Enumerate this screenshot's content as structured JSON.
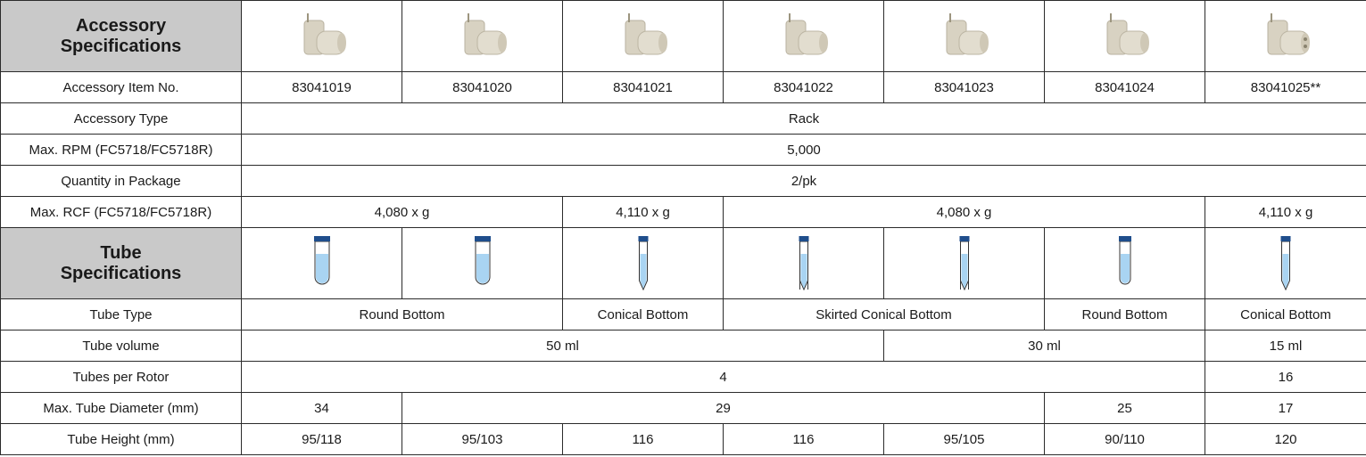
{
  "accessory_header": "Accessory Specifications",
  "accessory_rows": [
    {
      "label": "Accessory Item No.",
      "cells": [
        "83041019",
        "83041020",
        "83041021",
        "83041022",
        "83041023",
        "83041024",
        "83041025**"
      ]
    },
    {
      "label": "Accessory Type",
      "cells": [
        "Rack"
      ]
    },
    {
      "label": "Max. RPM (FC5718/FC5718R)",
      "cells": [
        "5,000"
      ]
    },
    {
      "label": "Quantity in Package",
      "cells": [
        "2/pk"
      ]
    },
    {
      "label": "Max. RCF (FC5718/FC5718R)",
      "cells": [
        "4,080 x g",
        "4,110 x g",
        "4,080 x g",
        "4,110 x g"
      ]
    }
  ],
  "tube_header": "Tube Specifications",
  "tube_rows": [
    {
      "label": "Tube Type",
      "cells": [
        "Round Bottom",
        "Conical Bottom",
        "Skirted Conical Bottom",
        "Round Bottom",
        "Conical Bottom"
      ]
    },
    {
      "label": "Tube volume",
      "cells": [
        "50 ml",
        "30 ml",
        "15 ml"
      ]
    },
    {
      "label": "Tubes per Rotor",
      "cells": [
        "4",
        "16"
      ]
    },
    {
      "label": "Max. Tube Diameter (mm)",
      "cells": [
        "34",
        "29",
        "25",
        "17"
      ]
    },
    {
      "label": "Tube Height (mm)",
      "cells": [
        "95/118",
        "95/103",
        "116",
        "116",
        "95/105",
        "90/110",
        "120"
      ]
    }
  ]
}
